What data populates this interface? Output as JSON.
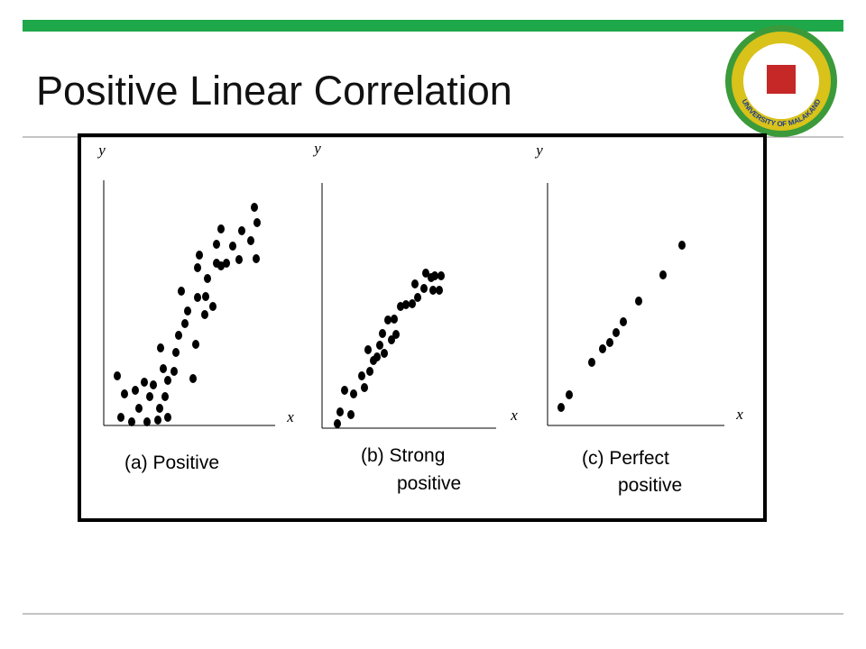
{
  "title": "Positive Linear Correlation",
  "logo_text": "UNIVERSITY OF MALAKAND",
  "chart_data": [
    {
      "type": "scatter",
      "xlabel": "x",
      "ylabel": "y",
      "caption": [
        "(a) Positive"
      ],
      "color": "#000000",
      "xlim": [
        0,
        190
      ],
      "ylim": [
        0,
        272
      ],
      "x": [
        15,
        19,
        23,
        31,
        35,
        39,
        45,
        48,
        51,
        55,
        60,
        62,
        63,
        66,
        68,
        71,
        71,
        78,
        80,
        83,
        86,
        90,
        93,
        99,
        102,
        104,
        106,
        104,
        112,
        113,
        115,
        121,
        125,
        125,
        130,
        130,
        136,
        143,
        150,
        153,
        163,
        167,
        169,
        170
      ],
      "values": [
        55,
        9,
        35,
        4,
        39,
        19,
        48,
        4,
        32,
        45,
        6,
        19,
        86,
        63,
        32,
        9,
        50,
        60,
        81,
        100,
        149,
        113,
        127,
        52,
        90,
        142,
        189,
        175,
        123,
        143,
        163,
        132,
        180,
        201,
        218,
        177,
        180,
        199,
        184,
        216,
        205,
        242,
        185,
        225
      ]
    },
    {
      "type": "scatter",
      "xlabel": "x",
      "ylabel": "y",
      "caption": [
        "(b) Strong",
        "positive"
      ],
      "color": "#000000",
      "xlim": [
        0,
        193
      ],
      "ylim": [
        0,
        272
      ],
      "x": [
        17,
        20,
        25,
        32,
        35,
        44,
        47,
        51,
        53,
        57,
        61,
        64,
        67,
        69,
        73,
        77,
        80,
        82,
        87,
        93,
        100,
        103,
        106,
        113,
        115,
        121,
        123,
        130,
        132,
        125
      ],
      "values": [
        5,
        18,
        42,
        15,
        38,
        58,
        45,
        87,
        63,
        75,
        79,
        92,
        105,
        83,
        120,
        98,
        121,
        104,
        135,
        137,
        138,
        160,
        145,
        155,
        172,
        167,
        153,
        153,
        169,
        169
      ]
    },
    {
      "type": "scatter",
      "xlabel": "x",
      "ylabel": "y",
      "caption": [
        "(c) Perfect",
        "positive"
      ],
      "color": "#000000",
      "xlim": [
        0,
        196
      ],
      "ylim": [
        0,
        269
      ],
      "x": [
        15,
        24,
        49,
        61,
        69,
        76,
        84,
        101,
        128,
        149
      ],
      "values": [
        20,
        34,
        70,
        85,
        92,
        103,
        115,
        138,
        167,
        200
      ]
    }
  ]
}
